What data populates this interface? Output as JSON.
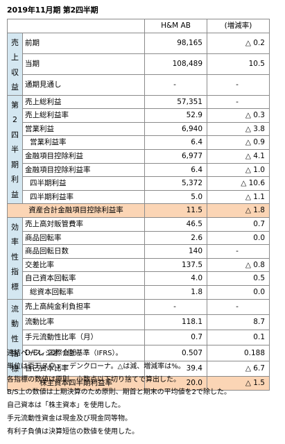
{
  "title": "2019年11月期 第2四半期",
  "header": {
    "company": "H&M AB",
    "change": "(増減率)"
  },
  "groups": {
    "sales": [
      "売",
      "上",
      "収",
      "益"
    ],
    "profit": [
      "第",
      "2",
      "四",
      "半",
      "期",
      "利",
      "益"
    ],
    "efficiency": [
      "効",
      "率",
      "性",
      "指",
      "標"
    ],
    "liquidity": [
      "流",
      "動",
      "性",
      "指",
      "標"
    ]
  },
  "rows": {
    "r1": {
      "label": "前期",
      "value": "98,165",
      "change": "△ 0.2"
    },
    "r2": {
      "label": "当期",
      "value": "108,489",
      "change": "10.5"
    },
    "r3": {
      "label": "通期見通し",
      "value": "-",
      "change": "-"
    },
    "r4": {
      "label": "売上総利益",
      "value": "57,351",
      "change": "-"
    },
    "r5": {
      "label": "売上総利益率",
      "value": "52.9",
      "change": "△ 0.3"
    },
    "r6": {
      "label": "営業利益",
      "value": "6,940",
      "change": "△ 3.8"
    },
    "r7": {
      "label": "営業利益率",
      "value": "6.4",
      "change": "△ 0.9"
    },
    "r8": {
      "label": "金融項目控除利益",
      "value": "6,977",
      "change": "△ 4.1"
    },
    "r9": {
      "label": "金融項目控除利益率",
      "value": "6.4",
      "change": "△ 1.0"
    },
    "r10": {
      "label": "四半期利益",
      "value": "5,372",
      "change": "△ 10.6"
    },
    "r11": {
      "label": "四半期利益率",
      "value": "5.0",
      "change": "△ 1.1"
    },
    "r12": {
      "label": "資産合計金融項目控除利益率",
      "value": "11.5",
      "change": "△ 1.8"
    },
    "r13": {
      "label": "売上高対販管費率",
      "value": "46.5",
      "change": "0.7"
    },
    "r14": {
      "label": "商品回転率",
      "value": "2.6",
      "change": "0.0"
    },
    "r15": {
      "label": "商品回転日数",
      "value": "140",
      "change": "-"
    },
    "r16": {
      "label": "交差比率",
      "value": "137.5",
      "change": "△ 0.8"
    },
    "r17": {
      "label": "自己資本回転率",
      "value": "4.0",
      "change": "0.5"
    },
    "r18": {
      "label": "総資本回転率",
      "value": "1.8",
      "change": "0.0"
    },
    "r19": {
      "label": "売上高純金利負担率",
      "value": "-",
      "change": "-"
    },
    "r20": {
      "label": "流動比率",
      "value": "118.1",
      "change": "8.7"
    },
    "r21": {
      "label": "手元流動性比率（月）",
      "value": "0.7",
      "change": "0.1"
    },
    "r22": {
      "label": "D/Eレシオ（倍）",
      "value": "0.507",
      "change": "0.188"
    },
    "r23": {
      "label": "自己資本比率",
      "value": "39.4",
      "change": "△ 6.7"
    },
    "r24": {
      "label": "株主資本四半期利益率",
      "value": "20.0",
      "change": "△ 1.5"
    }
  },
  "notes": [
    "連結ベース。国際会計基準（IFRS）。",
    "単位は百万スウェーデンクローナ。△は減、増減率は%。",
    "各指標の数値は原則、小数点以下切り捨てで算出した。",
    "B/S上の数値は上期決算のため原則、期首と期末の平均値を2で除した。",
    "自己資本は「株主資本」を使用した。",
    "手元流動性資金は現金及び現金同等物。",
    "有利子負債は決算短信の数値を使用した。"
  ]
}
